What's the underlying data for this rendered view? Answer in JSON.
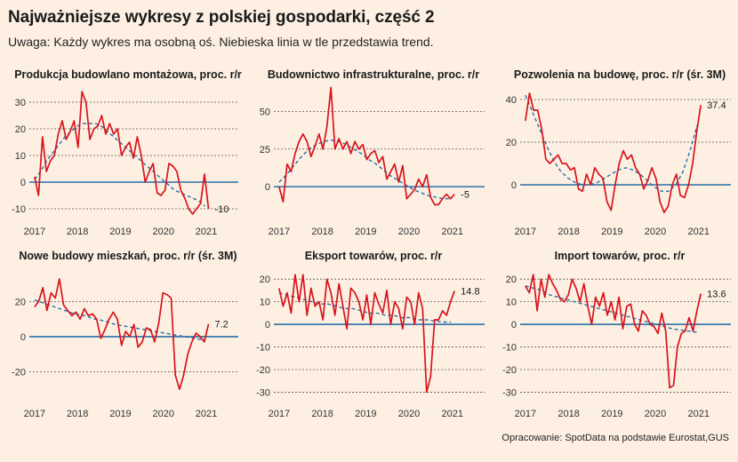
{
  "title": "Najważniejsze wykresy z polskiej gospodarki, część 2",
  "subtitle": "Uwaga: Każdy wykres ma osobną oś. Niebieska linia w tle przedstawia trend.",
  "source": "Opracowanie: SpotData na podstawie Eurostat,GUS",
  "colors": {
    "background": "#fdf0e3",
    "series": "#d9141b",
    "trend": "#2a6fa8",
    "zero_line": "#2a6fa8",
    "grid": "#555555"
  },
  "chart_data": [
    {
      "type": "line",
      "title": "Produkcja budowlano montażowa, proc. r/r",
      "x_ticks": [
        "2017",
        "2018",
        "2019",
        "2020",
        "2021"
      ],
      "ylim": [
        -13,
        35
      ],
      "y_ticks": [
        -10,
        0,
        10,
        20,
        30
      ],
      "grid": true,
      "end_label": "-10",
      "series": [
        {
          "values": [
            2,
            -5,
            17,
            4,
            8,
            10,
            18,
            23,
            16,
            19,
            23,
            13,
            34,
            30,
            16,
            20,
            21,
            25,
            18,
            22,
            18,
            20,
            10,
            13,
            15,
            9,
            17,
            10,
            0,
            4,
            7,
            -4,
            -5,
            -3,
            7,
            6,
            4,
            -3,
            -6,
            -10,
            -12,
            -10,
            -8,
            3,
            -10
          ]
        },
        {
          "values": [
            1,
            4,
            8,
            11,
            14,
            17,
            19,
            21,
            22,
            22,
            22,
            21,
            19,
            17,
            15,
            13,
            11,
            9,
            7,
            5,
            3,
            1,
            -1,
            -3,
            -4,
            -5,
            -6,
            -7,
            -9
          ]
        }
      ]
    },
    {
      "type": "line",
      "title": "Budownictwo infrastrukturalne, proc. r/r",
      "x_ticks": [
        "2017",
        "2018",
        "2019",
        "2020",
        "2021"
      ],
      "ylim": [
        -20,
        65
      ],
      "y_ticks": [
        0,
        25,
        50
      ],
      "grid": true,
      "end_label": "-5",
      "series": [
        {
          "values": [
            0,
            -10,
            15,
            10,
            22,
            30,
            35,
            30,
            20,
            27,
            35,
            25,
            40,
            66,
            25,
            32,
            25,
            30,
            22,
            30,
            25,
            28,
            18,
            22,
            24,
            16,
            20,
            5,
            10,
            15,
            3,
            14,
            -8,
            -5,
            -2,
            5,
            0,
            8,
            -7,
            -12,
            -12,
            -8,
            -5,
            -8,
            -5
          ]
        },
        {
          "values": [
            3,
            8,
            14,
            20,
            25,
            28,
            30,
            31,
            30,
            28,
            25,
            22,
            18,
            15,
            11,
            7,
            4,
            1,
            -2,
            -4,
            -6,
            -7,
            -8,
            -8
          ]
        }
      ]
    },
    {
      "type": "line",
      "title": "Pozwolenia na budowę, proc. r/r (śr. 3M)",
      "x_ticks": [
        "2017",
        "2018",
        "2019",
        "2020",
        "2021"
      ],
      "ylim": [
        -15,
        45
      ],
      "y_ticks": [
        0,
        20,
        40
      ],
      "grid": true,
      "end_label": "37.4",
      "series": [
        {
          "values": [
            30,
            43,
            35,
            35,
            26,
            12,
            10,
            12,
            14,
            10,
            10,
            7,
            8,
            -2,
            -3,
            5,
            0,
            8,
            5,
            3,
            -8,
            -12,
            0,
            10,
            16,
            12,
            14,
            8,
            5,
            -2,
            2,
            8,
            3,
            -8,
            -13,
            -10,
            0,
            5,
            -5,
            -6,
            0,
            10,
            25,
            37.4
          ]
        },
        {
          "values": [
            42,
            34,
            26,
            18,
            11,
            6,
            3,
            1,
            0,
            0,
            1,
            3,
            5,
            7,
            8,
            7,
            5,
            2,
            -1,
            -3,
            -3,
            0,
            6,
            16,
            28
          ]
        }
      ]
    },
    {
      "type": "line",
      "title": "Nowe budowy mieszkań, proc. r/r (śr. 3M)",
      "x_ticks": [
        "2017",
        "2018",
        "2019",
        "2020",
        "2021"
      ],
      "ylim": [
        -33,
        38
      ],
      "y_ticks": [
        -20,
        0,
        20
      ],
      "grid": true,
      "end_label": "7.2",
      "series": [
        {
          "values": [
            17,
            20,
            28,
            15,
            25,
            22,
            33,
            18,
            15,
            12,
            14,
            10,
            16,
            12,
            13,
            10,
            -1,
            4,
            10,
            14,
            10,
            -5,
            3,
            0,
            7,
            -6,
            -3,
            5,
            4,
            -3,
            8,
            25,
            24,
            22,
            -22,
            -30,
            -22,
            -10,
            -3,
            2,
            0,
            -3,
            7.2
          ]
        },
        {
          "values": [
            21,
            19,
            17,
            15,
            13,
            12,
            10,
            9,
            7,
            6,
            5,
            4,
            3,
            2,
            1,
            0,
            -1,
            -2
          ]
        }
      ]
    },
    {
      "type": "line",
      "title": "Eksport towarów, proc. r/r",
      "x_ticks": [
        "2017",
        "2018",
        "2019",
        "2020",
        "2021"
      ],
      "ylim": [
        -31,
        24
      ],
      "y_ticks": [
        -30,
        -20,
        -10,
        0,
        10,
        20
      ],
      "grid": true,
      "end_label": "14.8",
      "series": [
        {
          "values": [
            16,
            8,
            14,
            5,
            22,
            10,
            22,
            4,
            16,
            8,
            10,
            2,
            20,
            14,
            4,
            18,
            8,
            -2,
            16,
            14,
            10,
            2,
            13,
            0,
            14,
            9,
            5,
            15,
            0,
            10,
            7,
            -2,
            12,
            10,
            0,
            14,
            7,
            -30,
            -23,
            2,
            2,
            6,
            4,
            10,
            14.8
          ]
        },
        {
          "values": [
            14,
            13,
            12,
            11,
            10,
            9,
            9,
            8,
            7,
            7,
            6,
            5,
            5,
            4,
            4,
            3,
            3,
            2,
            2,
            1.5,
            1,
            1
          ]
        }
      ]
    },
    {
      "type": "line",
      "title": "Import towarów, proc. r/r",
      "x_ticks": [
        "2017",
        "2018",
        "2019",
        "2020",
        "2021"
      ],
      "ylim": [
        -31,
        24
      ],
      "y_ticks": [
        -30,
        -20,
        -10,
        0,
        10,
        20
      ],
      "grid": true,
      "end_label": "13.6",
      "series": [
        {
          "values": [
            17,
            14,
            22,
            6,
            20,
            12,
            22,
            18,
            15,
            11,
            10,
            13,
            20,
            16,
            10,
            18,
            8,
            0,
            12,
            8,
            14,
            4,
            10,
            2,
            12,
            -2,
            8,
            9,
            0,
            -3,
            6,
            4,
            0,
            -1,
            -4,
            5,
            -3,
            -28,
            -27,
            -10,
            -4,
            -3,
            3,
            -3,
            6,
            13.6
          ]
        },
        {
          "values": [
            17,
            16,
            15,
            13,
            12,
            11,
            10,
            9,
            8,
            7,
            6,
            5,
            4,
            3,
            2,
            1,
            0,
            -1,
            -2,
            -2.5,
            -3,
            -3.5
          ]
        }
      ]
    }
  ]
}
